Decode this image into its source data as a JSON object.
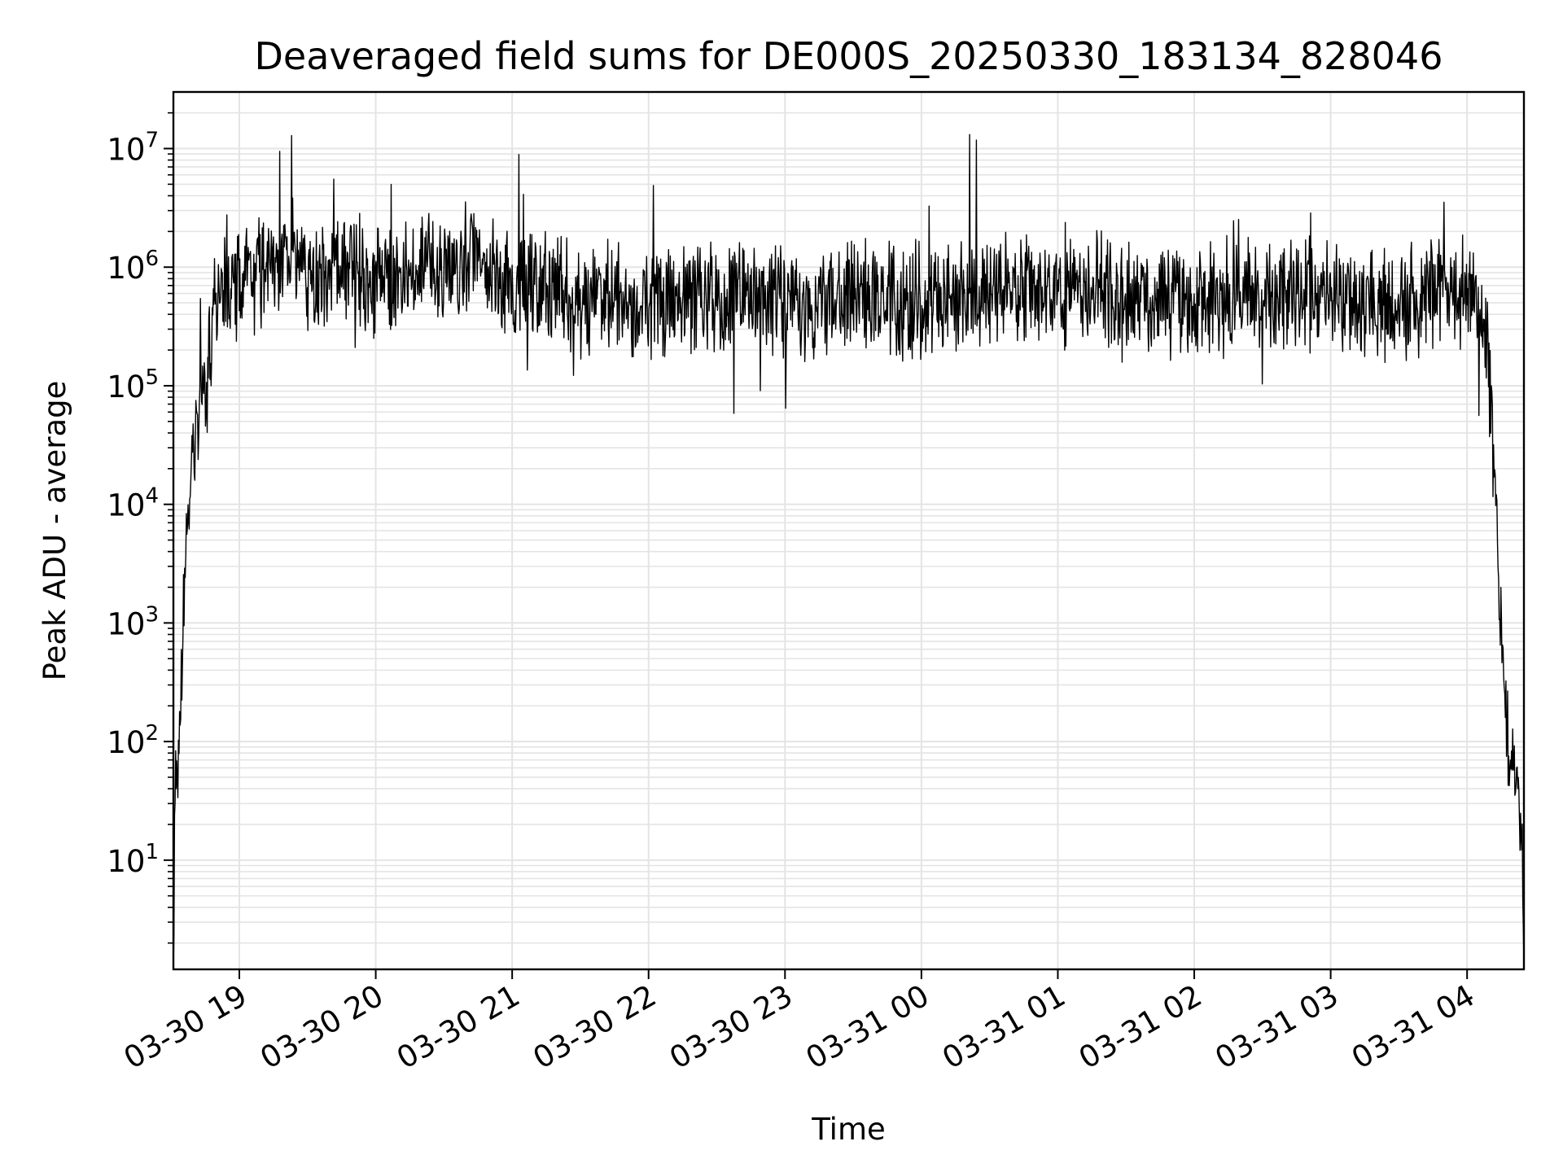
{
  "chart_data": {
    "type": "line",
    "title": "Deaveraged field sums for DE000S_20250330_183134_828046",
    "xlabel": "Time",
    "ylabel": "Peak ADU - average",
    "y_scale": "log",
    "x_range": [
      "2025-03-30 18:31",
      "2025-03-31 04:25"
    ],
    "y_range": [
      1.2,
      30000000
    ],
    "x_ticks": [
      "03-30 19",
      "03-30 20",
      "03-30 21",
      "03-30 22",
      "03-30 23",
      "03-31 00",
      "03-31 01",
      "03-31 02",
      "03-31 03",
      "03-31 04"
    ],
    "y_ticks": [
      {
        "base": "10",
        "exp": "1",
        "value": 10
      },
      {
        "base": "10",
        "exp": "2",
        "value": 100
      },
      {
        "base": "10",
        "exp": "3",
        "value": 1000
      },
      {
        "base": "10",
        "exp": "4",
        "value": 10000
      },
      {
        "base": "10",
        "exp": "5",
        "value": 100000
      },
      {
        "base": "10",
        "exp": "6",
        "value": 1000000
      },
      {
        "base": "10",
        "exp": "7",
        "value": 10000000
      }
    ],
    "grid": true,
    "line_color": "#000000",
    "grid_color": "#e4e4e4",
    "series": [
      {
        "x": [
          "2025-03-30 18:31",
          "2025-03-30 18:32",
          "2025-03-30 18:33",
          "2025-03-30 18:35",
          "2025-03-30 18:37",
          "2025-03-30 18:39",
          "2025-03-30 18:41",
          "2025-03-30 18:43",
          "2025-03-30 18:45",
          "2025-03-30 18:48",
          "2025-03-30 18:50",
          "2025-03-30 18:52",
          "2025-03-30 18:55",
          "2025-03-30 19:00",
          "2025-03-30 19:10",
          "2025-03-30 19:20",
          "2025-03-30 19:30",
          "2025-03-30 19:40",
          "2025-03-30 19:50",
          "2025-03-30 20:00",
          "2025-03-30 20:10",
          "2025-03-30 20:20",
          "2025-03-30 20:30",
          "2025-03-30 20:40",
          "2025-03-30 20:50",
          "2025-03-30 21:00",
          "2025-03-30 21:15",
          "2025-03-30 21:30",
          "2025-03-30 21:45",
          "2025-03-30 22:00",
          "2025-03-30 22:30",
          "2025-03-30 23:00",
          "2025-03-30 23:30",
          "2025-03-31 00:00",
          "2025-03-31 00:30",
          "2025-03-31 01:00",
          "2025-03-31 01:30",
          "2025-03-31 02:00",
          "2025-03-31 02:30",
          "2025-03-31 03:00",
          "2025-03-31 03:30",
          "2025-03-31 04:00",
          "2025-03-31 04:05",
          "2025-03-31 04:09",
          "2025-03-31 04:12",
          "2025-03-31 04:15",
          "2025-03-31 04:18",
          "2025-03-31 04:21",
          "2025-03-31 04:24",
          "2025-03-31 04:25"
        ],
        "y": [
          1.5,
          150,
          20,
          800,
          5000,
          15000,
          40000,
          100000,
          60000,
          300000,
          700000,
          500000,
          800000,
          700000,
          1000000,
          1200000,
          1000000,
          900000,
          1000000,
          700000,
          800000,
          900000,
          1000000,
          1200000,
          900000,
          700000,
          600000,
          500000,
          600000,
          500000,
          550000,
          500000,
          550000,
          500000,
          600000,
          700000,
          550000,
          500000,
          600000,
          550000,
          500000,
          600000,
          500000,
          200000,
          20000,
          1000,
          100,
          50,
          20,
          1.5
        ]
      }
    ]
  }
}
